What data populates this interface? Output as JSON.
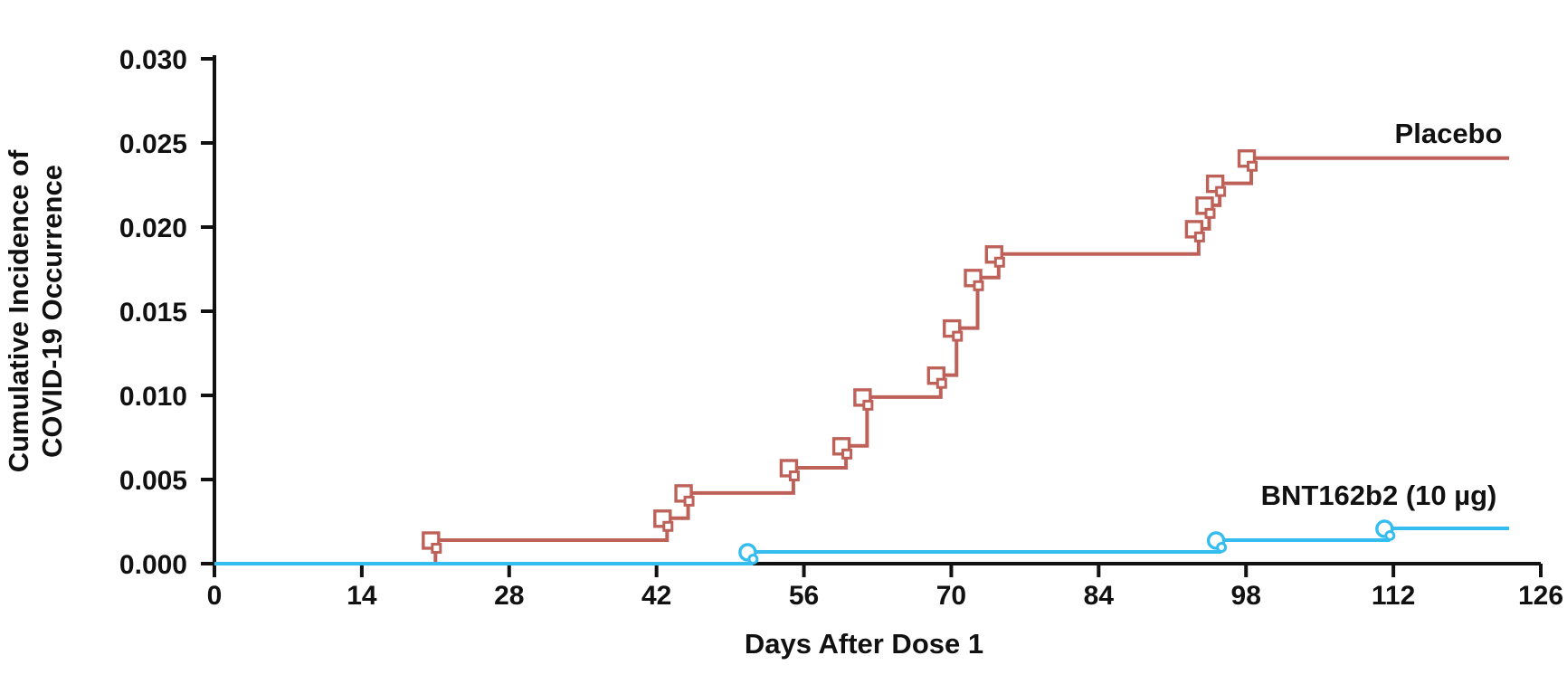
{
  "chart_data": {
    "type": "line",
    "chart_style": "kaplan-meier-step",
    "title": "",
    "xlabel": "Days After Dose 1",
    "ylabel_line1": "Cumulative Incidence of",
    "ylabel_line2": "COVID-19 Occurrence",
    "xlim": [
      0,
      126
    ],
    "ylim": [
      0.0,
      0.03
    ],
    "x_ticks": [
      0,
      14,
      28,
      42,
      56,
      70,
      84,
      98,
      112,
      126
    ],
    "y_ticks": [
      0.0,
      0.005,
      0.01,
      0.015,
      0.02,
      0.025,
      0.03
    ],
    "y_tick_labels": [
      "0.000",
      "0.005",
      "0.010",
      "0.015",
      "0.020",
      "0.025",
      "0.030"
    ],
    "grid": false,
    "legend_position": "labels-annotated-on-plot",
    "axis_color": "#111111",
    "text_color": "#111111",
    "series": [
      {
        "name": "Placebo",
        "color": "#bd6159",
        "marker": "open-square",
        "start": [
          0,
          0.0
        ],
        "end_day": 123,
        "points": [
          [
            21,
            0.0014
          ],
          [
            43,
            0.0027
          ],
          [
            45,
            0.0042
          ],
          [
            55,
            0.0057
          ],
          [
            60,
            0.007
          ],
          [
            62,
            0.0099
          ],
          [
            69,
            0.0112
          ],
          [
            70.5,
            0.014
          ],
          [
            72.5,
            0.017
          ],
          [
            74.5,
            0.0184
          ],
          [
            93.5,
            0.0199
          ],
          [
            94.5,
            0.0213
          ],
          [
            95.5,
            0.0226
          ],
          [
            98.5,
            0.0241
          ]
        ]
      },
      {
        "name": "BNT162b2 (10 µg)",
        "color": "#35bdf0",
        "marker": "open-circle",
        "start": [
          0,
          0.0
        ],
        "end_day": 123,
        "points": [
          [
            51,
            0.0007
          ],
          [
            95.5,
            0.0014
          ],
          [
            111.5,
            0.0021
          ]
        ]
      }
    ]
  }
}
